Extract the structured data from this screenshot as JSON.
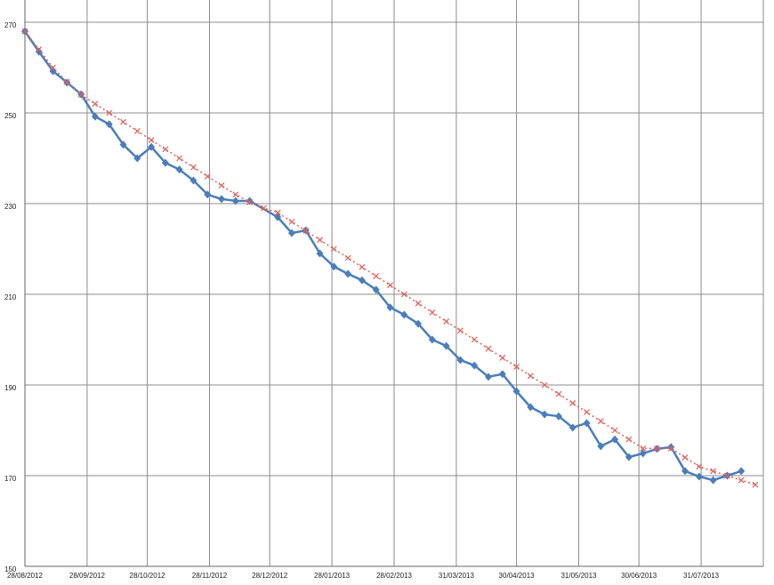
{
  "chart_data": {
    "type": "line",
    "xlim": [
      "2012-08-28",
      "2013-08-31"
    ],
    "ylim": [
      150,
      270
    ],
    "yticks": [
      150,
      170,
      190,
      210,
      230,
      250,
      270
    ],
    "xticks": [
      {
        "value": "2012-08-28",
        "label": "28/08/2012"
      },
      {
        "value": "2012-09-28",
        "label": "28/09/2012"
      },
      {
        "value": "2012-10-28",
        "label": "28/10/2012"
      },
      {
        "value": "2012-11-28",
        "label": "28/11/2012"
      },
      {
        "value": "2012-12-28",
        "label": "28/12/2012"
      },
      {
        "value": "2013-01-28",
        "label": "28/01/2013"
      },
      {
        "value": "2013-02-28",
        "label": "28/02/2013"
      },
      {
        "value": "2013-03-31",
        "label": "31/03/2013"
      },
      {
        "value": "2013-04-30",
        "label": "30/04/2013"
      },
      {
        "value": "2013-05-31",
        "label": "31/05/2013"
      },
      {
        "value": "2013-06-30",
        "label": "30/06/2013"
      },
      {
        "value": "2013-07-31",
        "label": "31/07/2013"
      }
    ],
    "grid": true,
    "series": [
      {
        "color": "#4a7ebb",
        "marker": "diamond",
        "line_style": "solid",
        "x": [
          "2012-08-28",
          "2012-09-04",
          "2012-09-11",
          "2012-09-18",
          "2012-09-25",
          "2012-10-02",
          "2012-10-09",
          "2012-10-16",
          "2012-10-23",
          "2012-10-30",
          "2012-11-06",
          "2012-11-13",
          "2012-11-20",
          "2012-11-27",
          "2012-12-04",
          "2012-12-11",
          "2012-12-18",
          "2013-01-01",
          "2013-01-08",
          "2013-01-15",
          "2013-01-22",
          "2013-01-29",
          "2013-02-05",
          "2013-02-12",
          "2013-02-19",
          "2013-02-26",
          "2013-03-05",
          "2013-03-12",
          "2013-03-19",
          "2013-03-26",
          "2013-04-02",
          "2013-04-09",
          "2013-04-16",
          "2013-04-23",
          "2013-04-30",
          "2013-05-07",
          "2013-05-14",
          "2013-05-21",
          "2013-05-28",
          "2013-06-04",
          "2013-06-11",
          "2013-06-18",
          "2013-06-25",
          "2013-07-02",
          "2013-07-09",
          "2013-07-16",
          "2013-07-23",
          "2013-07-30",
          "2013-08-06",
          "2013-08-13",
          "2013-08-20"
        ],
        "values": [
          268,
          263.5,
          259.2,
          256.7,
          254.1,
          249.2,
          247.5,
          243,
          240,
          242.5,
          239,
          237.5,
          235.1,
          232,
          231,
          230.6,
          230.6,
          227,
          223.5,
          224.1,
          219,
          216.1,
          214.5,
          213.1,
          211,
          207.1,
          205.5,
          203.5,
          200,
          198.6,
          195.5,
          194.3,
          191.8,
          192.4,
          188.6,
          185.1,
          183.5,
          183.1,
          180.6,
          181.6,
          176.5,
          178,
          174.1,
          174.9,
          175.9,
          176.3,
          171,
          169.8,
          169,
          170,
          171
        ]
      },
      {
        "color": "#e0605a",
        "marker": "cross",
        "line_style": "dotted",
        "x": [
          "2012-08-28",
          "2012-09-04",
          "2012-09-11",
          "2012-09-18",
          "2012-09-25",
          "2012-10-02",
          "2012-10-09",
          "2012-10-16",
          "2012-10-23",
          "2012-10-30",
          "2012-11-06",
          "2012-11-13",
          "2012-11-20",
          "2012-11-27",
          "2012-12-04",
          "2012-12-11",
          "2012-12-18",
          "2012-12-25",
          "2013-01-01",
          "2013-01-08",
          "2013-01-15",
          "2013-01-22",
          "2013-01-29",
          "2013-02-05",
          "2013-02-12",
          "2013-02-19",
          "2013-02-26",
          "2013-03-05",
          "2013-03-12",
          "2013-03-19",
          "2013-03-26",
          "2013-04-02",
          "2013-04-09",
          "2013-04-16",
          "2013-04-23",
          "2013-04-30",
          "2013-05-07",
          "2013-05-14",
          "2013-05-21",
          "2013-05-28",
          "2013-06-04",
          "2013-06-11",
          "2013-06-18",
          "2013-06-25",
          "2013-07-02",
          "2013-07-09",
          "2013-07-16",
          "2013-07-23",
          "2013-07-30",
          "2013-08-06",
          "2013-08-13",
          "2013-08-20",
          "2013-08-27"
        ],
        "values": [
          268,
          264,
          260,
          256.8,
          254,
          252,
          250,
          248,
          246,
          244,
          242,
          240,
          238,
          236,
          234,
          232,
          230.3,
          229,
          228,
          226,
          224,
          222,
          220,
          218,
          216,
          214,
          212,
          210,
          208,
          206,
          204,
          202,
          200,
          198,
          196,
          194,
          192,
          190,
          188,
          186,
          184,
          182,
          180,
          178,
          176,
          176,
          176,
          174,
          172,
          171,
          170,
          169,
          168
        ]
      }
    ]
  }
}
